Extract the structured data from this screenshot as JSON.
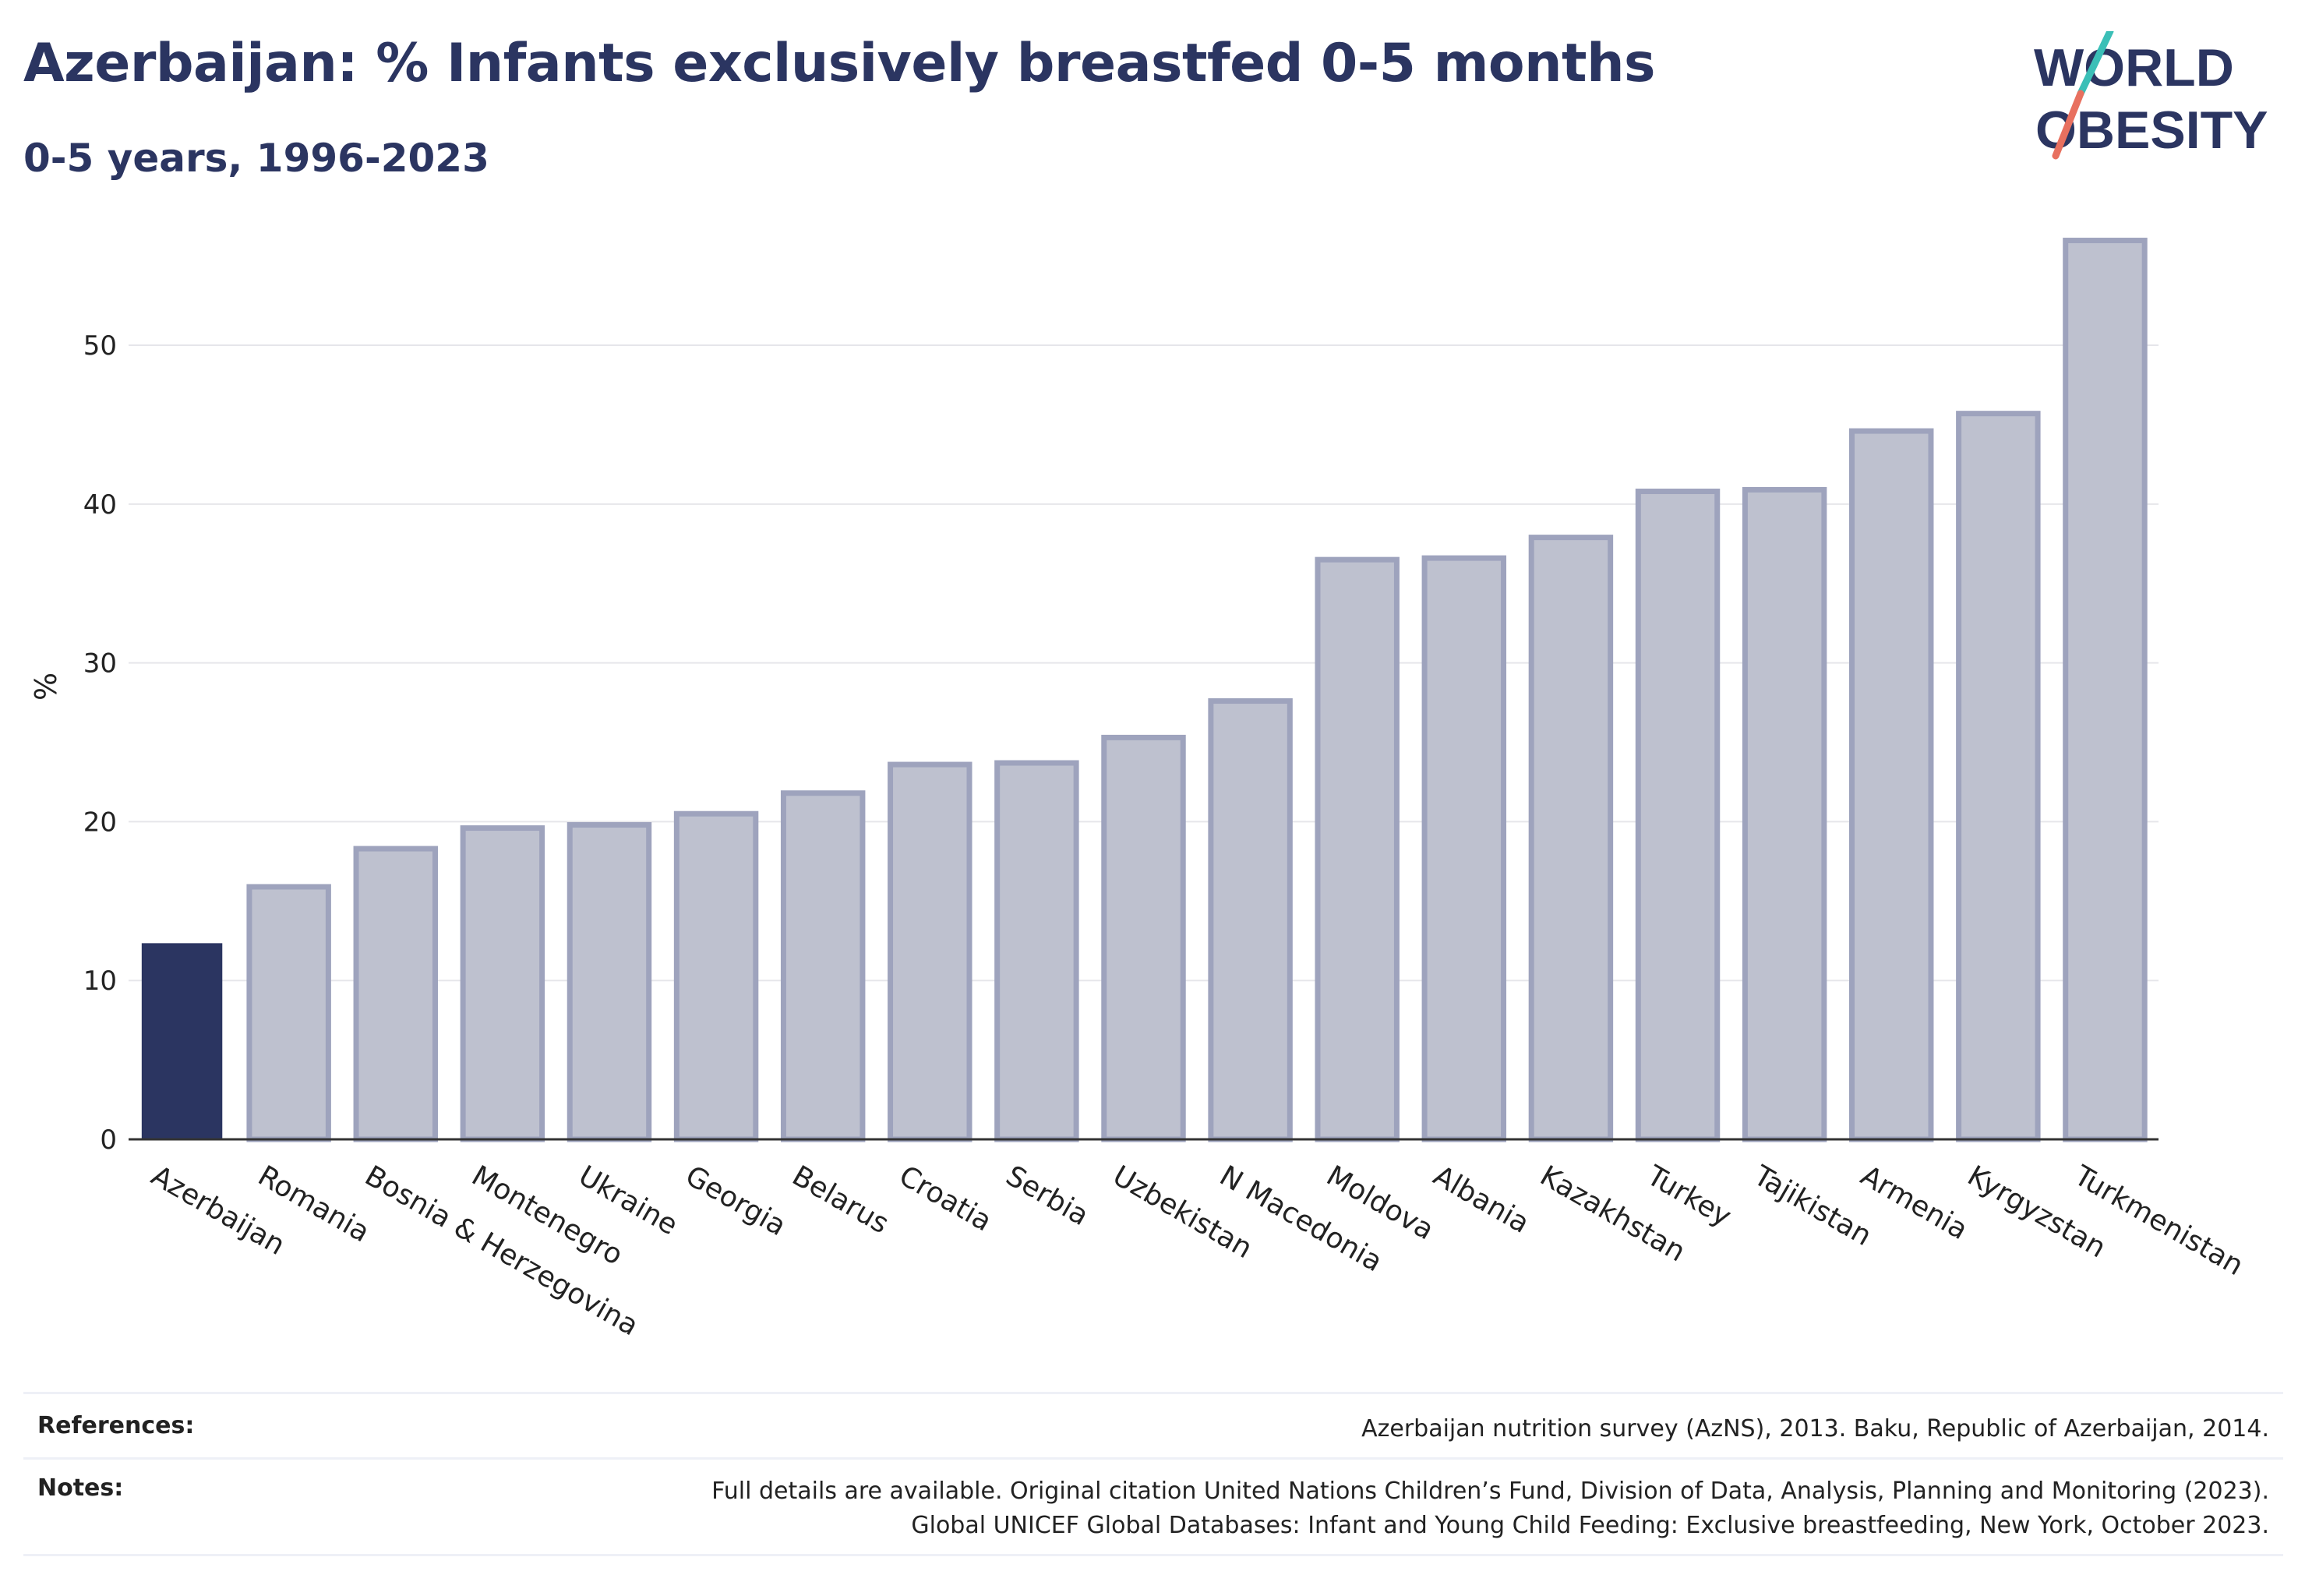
{
  "header": {
    "title": "Azerbaijan: % Infants exclusively breastfed 0-5 months",
    "subtitle": "0-5 years, 1996-2023"
  },
  "logo": {
    "line1": "WORLD",
    "line2": "OBESITY",
    "colors": {
      "text": "#2b3561",
      "slash_top": "#3bbfb7",
      "slash_bottom": "#e8705f"
    }
  },
  "chart_data": {
    "type": "bar",
    "ylabel": "%",
    "xlabel": "",
    "ylim": [
      0,
      58
    ],
    "yticks": [
      0,
      10,
      20,
      30,
      40,
      50
    ],
    "grid": true,
    "highlight_category": "Azerbaijan",
    "colors": {
      "highlight": "#2b3561",
      "bar_fill": "#bec1cf",
      "bar_stroke": "#9ea3bd",
      "grid": "#e6e6ea",
      "axis": "#333333"
    },
    "categories": [
      "Azerbaijan",
      "Romania",
      "Bosnia & Herzegovina",
      "Montenegro",
      "Ukraine",
      "Georgia",
      "Belarus",
      "Croatia",
      "Serbia",
      "Uzbekistan",
      "N Macedonia",
      "Moldova",
      "Albania",
      "Kazakhstan",
      "Turkey",
      "Tajikistan",
      "Armenia",
      "Kyrgyzstan",
      "Turkmenistan"
    ],
    "values": [
      12.3,
      15.9,
      18.3,
      19.6,
      19.8,
      20.5,
      21.8,
      23.6,
      23.7,
      25.3,
      27.6,
      36.5,
      36.6,
      37.9,
      40.8,
      40.9,
      44.6,
      45.7,
      56.6
    ]
  },
  "footer": {
    "references_label": "References:",
    "references_text": "Azerbaijan nutrition survey (AzNS), 2013. Baku, Republic of Azerbaijan, 2014.",
    "notes_label": "Notes:",
    "notes_line1": "Full details are available. Original citation United Nations Children’s Fund, Division of Data, Analysis, Planning and Monitoring (2023).",
    "notes_line2": "Global UNICEF Global Databases: Infant and Young Child Feeding: Exclusive breastfeeding, New York, October 2023."
  }
}
